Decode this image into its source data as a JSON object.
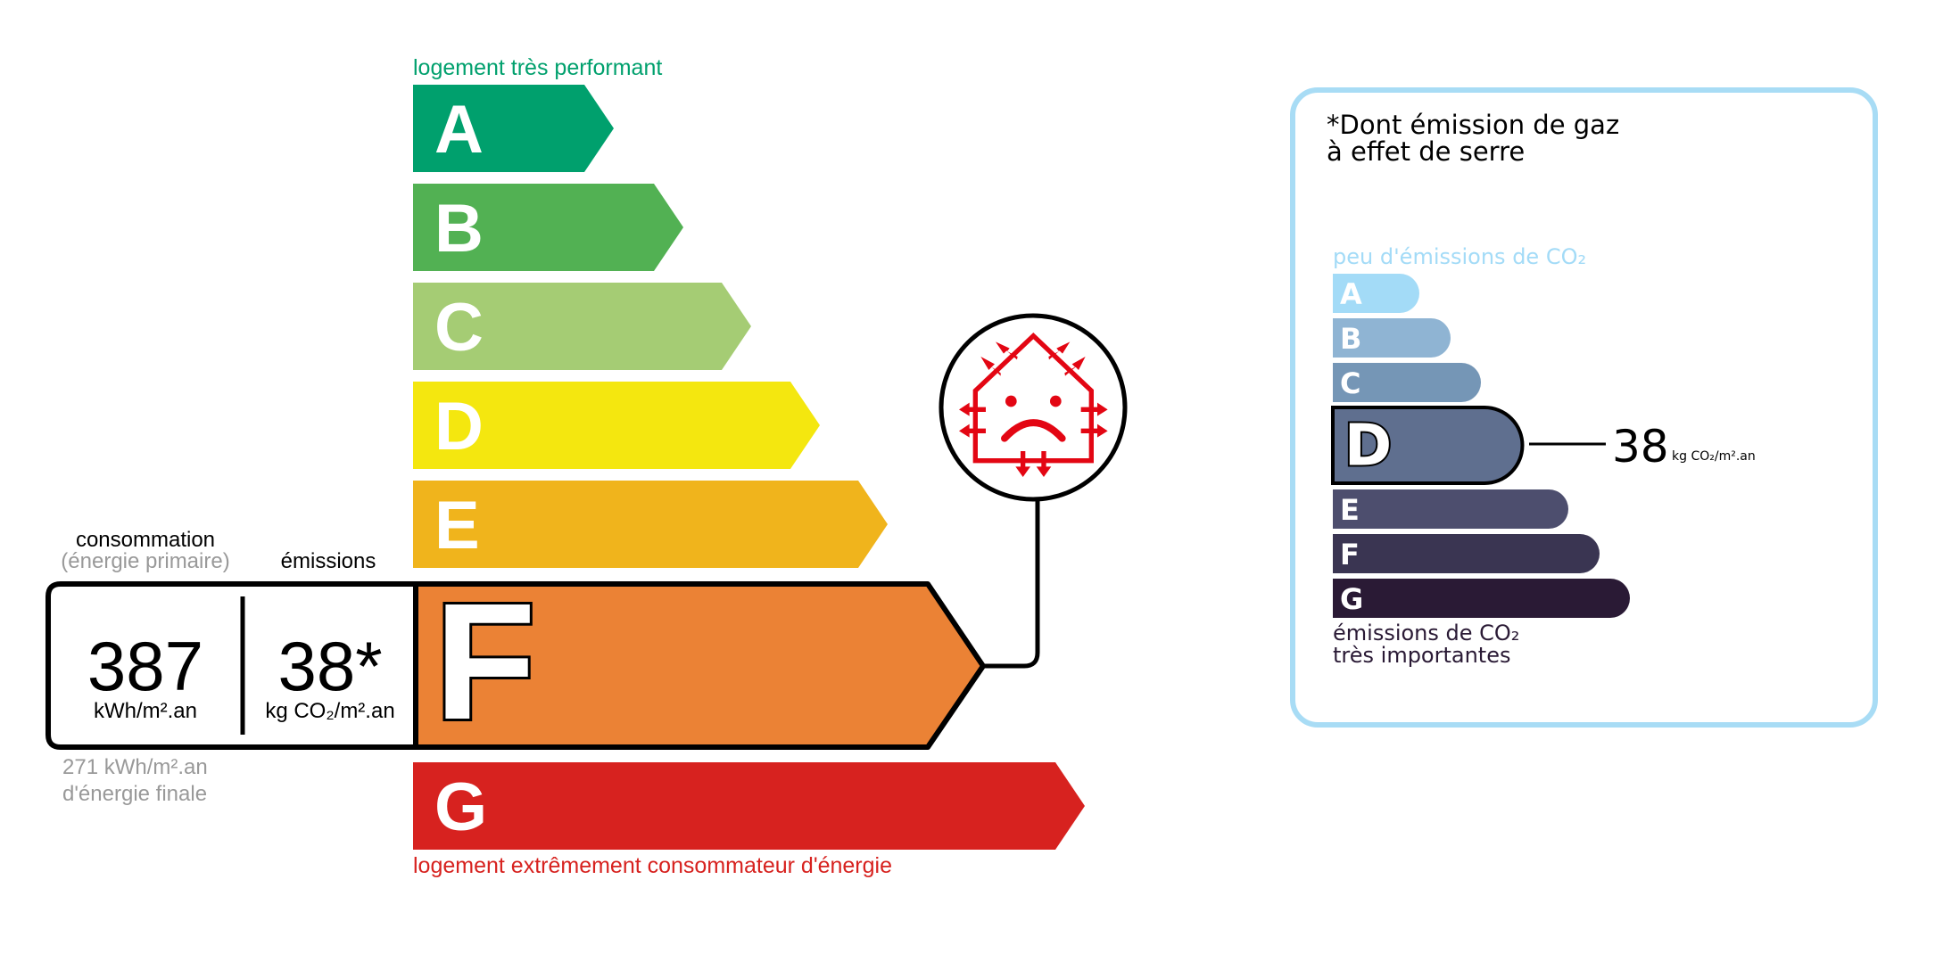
{
  "energy": {
    "top_label": "logement très performant",
    "bottom_label": "logement extrêmement consommateur d'énergie",
    "classes": [
      {
        "letter": "A",
        "color": "#00a06d"
      },
      {
        "letter": "B",
        "color": "#52b153"
      },
      {
        "letter": "C",
        "color": "#a5cc74"
      },
      {
        "letter": "D",
        "color": "#f4e70f"
      },
      {
        "letter": "E",
        "color": "#f0b41c"
      },
      {
        "letter": "F",
        "color": "#eb8235"
      },
      {
        "letter": "G",
        "color": "#d7221f"
      }
    ],
    "current_class": "F",
    "consumption_label": "consommation",
    "consumption_sub_label": "(énergie primaire)",
    "emissions_label": "émissions",
    "consumption_value": "387",
    "consumption_unit": "kWh/m².an",
    "emissions_value": "38*",
    "emissions_unit": "kg CO₂/m².an",
    "final_energy_value": "271 kWh/m².an",
    "final_energy_label": "d'énergie finale",
    "icon": "house-heat-loss-sad-face-icon",
    "icon_color": "#e30613"
  },
  "ges": {
    "title_line1": "*Dont émission de gaz",
    "title_line2": "à effet de serre",
    "top_label": "peu d'émissions de CO₂",
    "bottom_label_line1": "émissions de CO₂",
    "bottom_label_line2": "très importantes",
    "classes": [
      {
        "letter": "A",
        "color": "#a3dbf7"
      },
      {
        "letter": "B",
        "color": "#8fb4d3"
      },
      {
        "letter": "C",
        "color": "#7596b6"
      },
      {
        "letter": "D",
        "color": "#5f6f8f"
      },
      {
        "letter": "E",
        "color": "#4d4e6e"
      },
      {
        "letter": "F",
        "color": "#3a3552"
      },
      {
        "letter": "G",
        "color": "#2a1a35"
      }
    ],
    "current_class": "D",
    "value": "38",
    "unit": "kg CO₂/m².an",
    "border_color": "#a8dcf5"
  }
}
